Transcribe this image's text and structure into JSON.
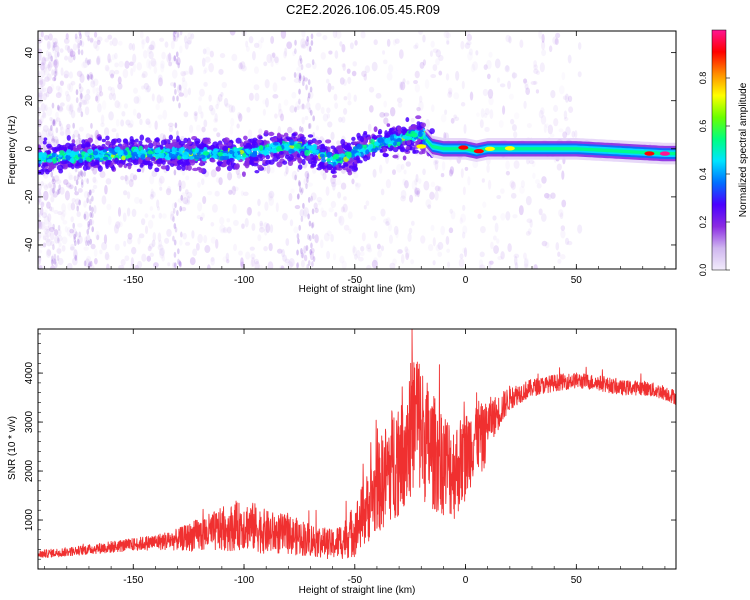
{
  "title": "C2E2.2026.106.05.45.R09",
  "chart_data": [
    {
      "type": "heatmap",
      "title": "C2E2.2026.106.05.45.R09",
      "xlabel": "Height of straight line (km)",
      "ylabel": "Frequency (Hz)",
      "xlim": [
        -193,
        95
      ],
      "ylim": [
        -50,
        49
      ],
      "x_ticks": [
        "-150",
        "-100",
        "-50",
        "0",
        "50"
      ],
      "y_ticks": [
        "-40",
        "-20",
        "0",
        "20",
        "40"
      ],
      "colorbar": {
        "label": "Normalized spectral amplitude",
        "range": [
          0,
          1
        ],
        "ticks": [
          "0.0",
          "0.2",
          "0.4",
          "0.6",
          "0.8"
        ],
        "colors": [
          "#f2ecfb",
          "#cfb6ef",
          "#8b2be2",
          "#4b00ff",
          "#0070ff",
          "#00e5ff",
          "#00ff80",
          "#6aff00",
          "#ffff00",
          "#ff8c00",
          "#ff0000",
          "#ff1493"
        ]
      },
      "ridge": {
        "x": [
          -193,
          -175,
          -150,
          -125,
          -100,
          -80,
          -70,
          -60,
          -50,
          -40,
          -30,
          -20,
          -15,
          -10,
          0,
          5,
          10,
          20,
          30,
          50,
          70,
          90,
          95
        ],
        "y": [
          -4,
          -3,
          -2,
          -2,
          -2,
          1,
          0,
          -5,
          -2,
          2,
          4,
          6,
          1,
          0,
          0,
          -1,
          0,
          0,
          0,
          0,
          -1,
          -2,
          -2
        ]
      }
    },
    {
      "type": "line",
      "xlabel": "Height of straight line (km)",
      "ylabel": "SNR (10 * v/v)",
      "xlim": [
        -193,
        95
      ],
      "ylim": [
        0,
        4900
      ],
      "x_ticks": [
        "-150",
        "-100",
        "-50",
        "0",
        "50"
      ],
      "y_ticks": [
        "1000",
        "2000",
        "3000",
        "4000"
      ],
      "series": [
        {
          "name": "SNR",
          "color": "#f03030",
          "x": [
            -193,
            -180,
            -170,
            -160,
            -150,
            -140,
            -130,
            -120,
            -110,
            -100,
            -95,
            -90,
            -80,
            -70,
            -60,
            -55,
            -50,
            -45,
            -40,
            -35,
            -30,
            -25,
            -22,
            -20,
            -15,
            -10,
            -5,
            0,
            5,
            8,
            10,
            15,
            20,
            25,
            30,
            40,
            50,
            60,
            70,
            80,
            90,
            95
          ],
          "y": [
            300,
            350,
            400,
            450,
            500,
            550,
            600,
            700,
            800,
            900,
            850,
            750,
            700,
            600,
            500,
            600,
            800,
            1200,
            1600,
            2000,
            2400,
            2800,
            3200,
            2800,
            2400,
            2200,
            2000,
            2300,
            2800,
            2600,
            3000,
            3200,
            3500,
            3600,
            3700,
            3800,
            3850,
            3800,
            3700,
            3700,
            3600,
            3500
          ],
          "noise": [
            80,
            90,
            100,
            120,
            130,
            160,
            220,
            350,
            450,
            500,
            500,
            450,
            400,
            350,
            300,
            400,
            550,
            700,
            900,
            1100,
            1300,
            1400,
            1500,
            1400,
            1200,
            1100,
            1000,
            900,
            800,
            700,
            500,
            350,
            250,
            200,
            180,
            170,
            160,
            160,
            150,
            150,
            150,
            150
          ]
        }
      ]
    }
  ]
}
